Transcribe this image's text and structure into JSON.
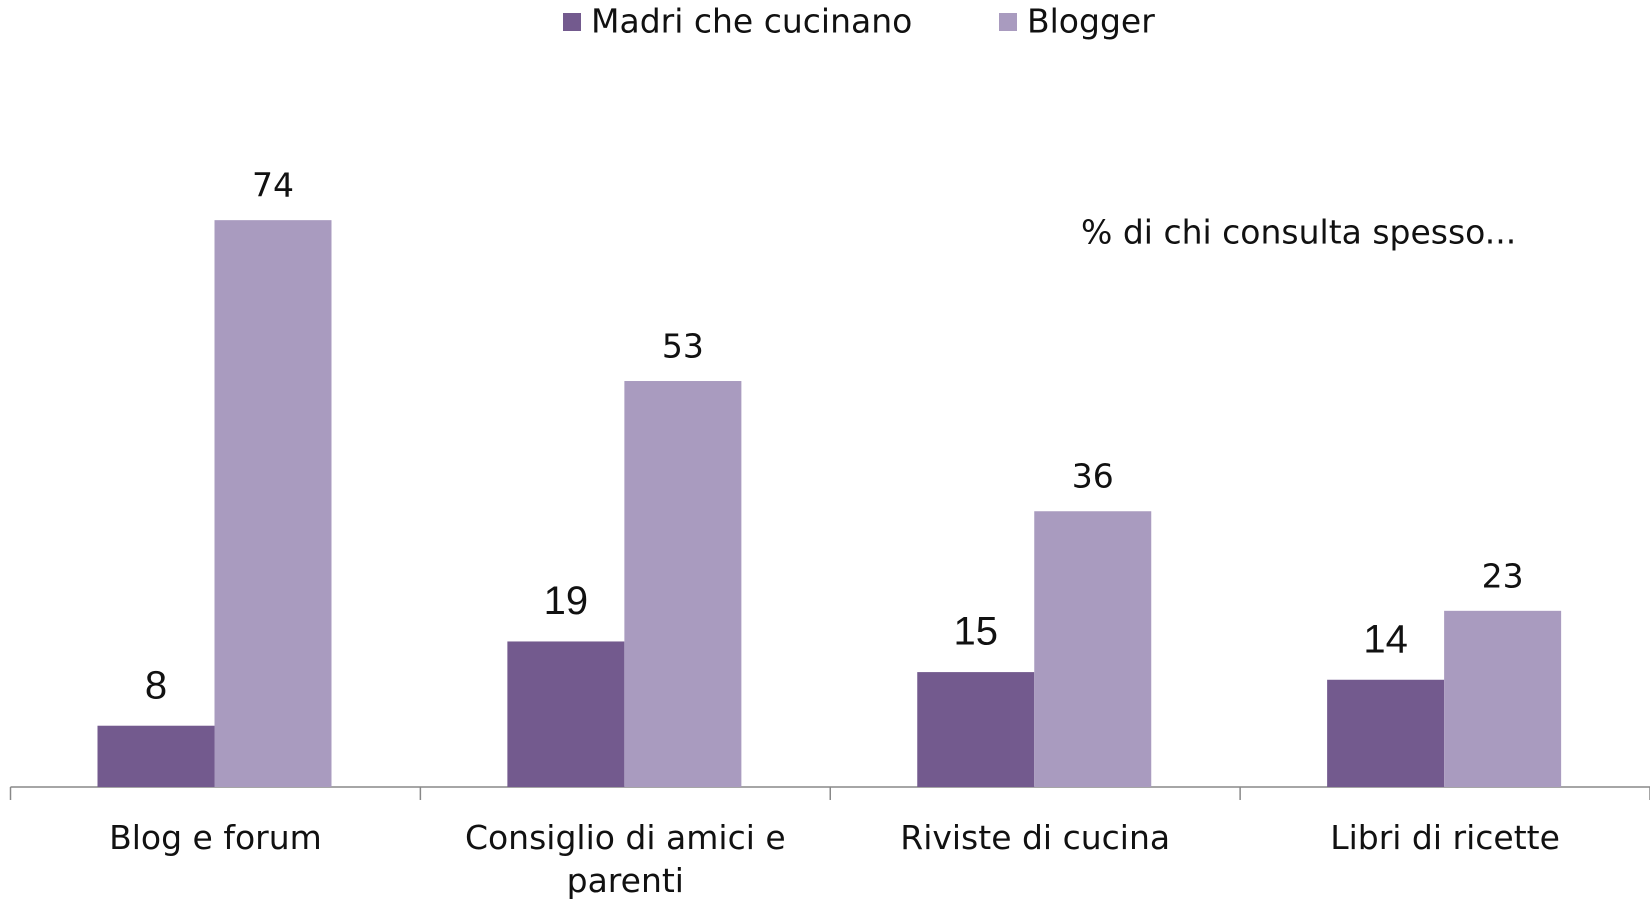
{
  "chart_data": {
    "type": "bar",
    "annotation": "% di chi consulta spesso...",
    "categories": [
      "Blog e forum",
      "Consiglio di amici e parenti",
      "Riviste di cucina",
      "Libri di ricette"
    ],
    "series": [
      {
        "name": "Madri che cucinano",
        "color": "#735a8e",
        "values": [
          8,
          19,
          15,
          14
        ]
      },
      {
        "name": "Blogger",
        "color": "#a99bbf",
        "values": [
          74,
          53,
          36,
          23
        ]
      }
    ],
    "legend": "top"
  }
}
